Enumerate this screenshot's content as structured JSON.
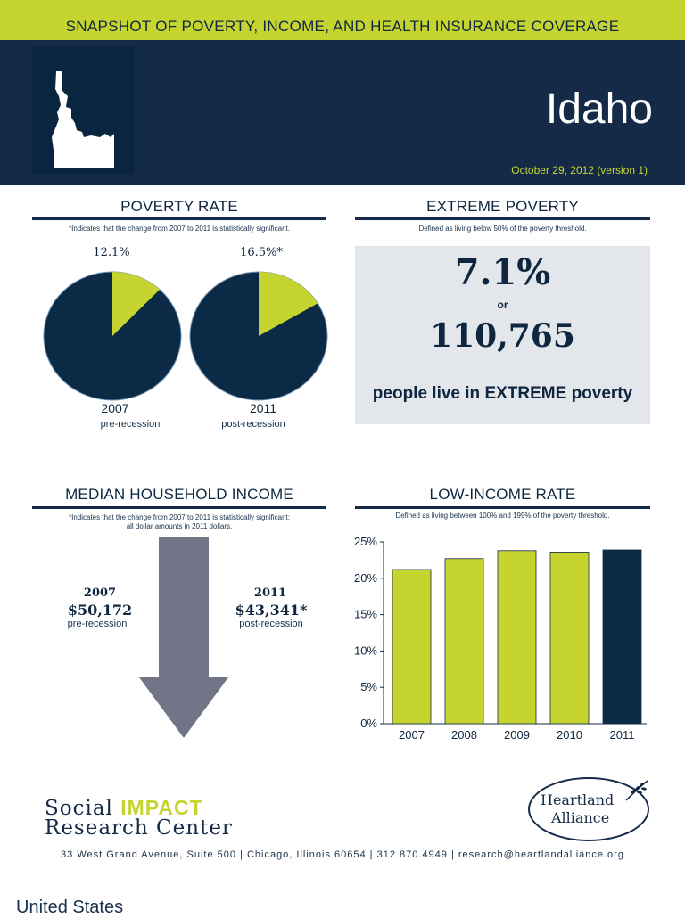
{
  "header": {
    "banner": "SNAPSHOT OF POVERTY, INCOME, AND HEALTH INSURANCE COVERAGE",
    "state": "Idaho",
    "date": "October 29, 2012 (version 1)"
  },
  "poverty_rate": {
    "title": "POVERTY RATE",
    "note": "*Indicates that the change from 2007 to 2011 is statistically significant.",
    "items": [
      {
        "pct_label": "12.1%",
        "value": 12.1,
        "year": "2007",
        "sub": "pre-recession"
      },
      {
        "pct_label": "16.5%*",
        "value": 16.5,
        "year": "2011",
        "sub": "post-recession"
      }
    ]
  },
  "extreme_poverty": {
    "title": "EXTREME POVERTY",
    "note": "Defined as living below 50% of the poverty threshold.",
    "rate": "7.1%",
    "or": "or",
    "count": "110,765",
    "caption": "people live in EXTREME poverty"
  },
  "median_income": {
    "title": "MEDIAN HOUSEHOLD INCOME",
    "note_line1": "*Indicates that the change from 2007 to 2011 is statistically significant;",
    "note_line2": "all dollar amounts in 2011 dollars.",
    "left": {
      "year": "2007",
      "value": "$50,172",
      "sub": "pre-recession"
    },
    "right": {
      "year": "2011",
      "value": "$43,341*",
      "sub": "post-recession"
    }
  },
  "low_income": {
    "title": "LOW-INCOME RATE",
    "note": "Defined as living between 100% and 199% of the poverty threshold."
  },
  "chart_data": {
    "type": "bar",
    "title": "LOW-INCOME RATE",
    "categories": [
      "2007",
      "2008",
      "2009",
      "2010",
      "2011"
    ],
    "values": [
      21.2,
      22.7,
      23.8,
      23.6,
      23.9
    ],
    "highlight_color": "#0b2a45",
    "bar_color": "#c6d430",
    "ylim": [
      0,
      25
    ],
    "yticks": [
      "0%",
      "5%",
      "10%",
      "15%",
      "20%",
      "25%"
    ]
  },
  "colors": {
    "navy": "#142a47",
    "lime": "#c6d430",
    "arrow": "#717587"
  },
  "footer": {
    "org_line1_a": "Social ",
    "org_line1_b": "IMPACT",
    "org_line2": "Research Center",
    "address": "33 West Grand Avenue, Suite 500 | Chicago, Illinois 60654 | 312.870.4949 | research@heartlandalliance.org",
    "partner_l1": "Heartland",
    "partner_l2": "Alliance",
    "country": "United States"
  }
}
